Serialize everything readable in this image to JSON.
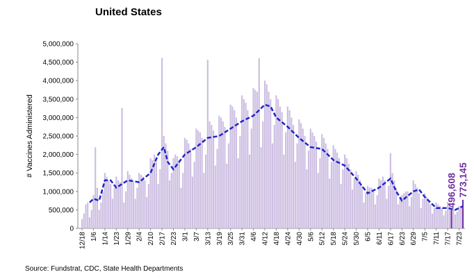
{
  "chart_data": {
    "type": "bar",
    "title": "United States",
    "y_label": "# Vaccines Administered",
    "source": "Source: Fundstrat, CDC, State Health Departments",
    "color": "#cdbfe2",
    "highlight_color": "#7030a0",
    "ylim": [
      0,
      5000000
    ],
    "yticks": [
      0,
      {
        "value": 500000,
        "label": "500,000"
      },
      {
        "value": 1000000,
        "label": "1,000,000"
      },
      {
        "value": 1500000,
        "label": "1,500,000"
      },
      {
        "value": 2000000,
        "label": "2,000,000"
      },
      {
        "value": 2500000,
        "label": "2,500,000"
      },
      {
        "value": 3000000,
        "label": "3,000,000"
      },
      {
        "value": 3500000,
        "label": "3,500,000"
      },
      {
        "value": 4000000,
        "label": "4,000,000"
      },
      {
        "value": 4500000,
        "label": "4,500,000"
      },
      {
        "value": 5000000,
        "label": "5,000,000"
      }
    ],
    "categories": [
      "12/18",
      null,
      null,
      null,
      null,
      null,
      "1/6",
      null,
      null,
      null,
      null,
      null,
      "1/14",
      null,
      null,
      null,
      null,
      null,
      "1/23",
      null,
      null,
      null,
      null,
      null,
      "1/29",
      null,
      null,
      null,
      null,
      null,
      "2/4",
      null,
      null,
      null,
      null,
      null,
      "2/10",
      null,
      null,
      null,
      null,
      null,
      "2/17",
      null,
      null,
      null,
      null,
      null,
      "2/23",
      null,
      null,
      null,
      null,
      null,
      "3/1",
      null,
      null,
      null,
      null,
      null,
      "3/7",
      null,
      null,
      null,
      null,
      null,
      "3/13",
      null,
      null,
      null,
      null,
      null,
      "3/19",
      null,
      null,
      null,
      null,
      null,
      "3/25",
      null,
      null,
      null,
      null,
      null,
      "3/31",
      null,
      null,
      null,
      null,
      null,
      "4/6",
      null,
      null,
      null,
      null,
      null,
      "4/12",
      null,
      null,
      null,
      null,
      null,
      "4/18",
      null,
      null,
      null,
      null,
      null,
      "4/24",
      null,
      null,
      null,
      null,
      null,
      "4/30",
      null,
      null,
      null,
      null,
      null,
      "5/6",
      null,
      null,
      null,
      null,
      null,
      "5/12",
      null,
      null,
      null,
      null,
      null,
      "5/18",
      null,
      null,
      null,
      null,
      null,
      "5/24",
      null,
      null,
      null,
      null,
      null,
      "5/30",
      null,
      null,
      null,
      null,
      null,
      "6/5",
      null,
      null,
      null,
      null,
      null,
      "6/11",
      null,
      null,
      null,
      null,
      null,
      "6/17",
      null,
      null,
      null,
      null,
      null,
      "6/23",
      null,
      null,
      null,
      null,
      null,
      "6/29",
      null,
      null,
      null,
      null,
      null,
      "7/5",
      null,
      null,
      null,
      null,
      null,
      "7/11",
      null,
      null,
      null,
      null,
      null,
      "7/17",
      null,
      null,
      null,
      null,
      null,
      "7/23",
      null,
      null
    ],
    "values": [
      250000,
      400000,
      650000,
      700000,
      300000,
      500000,
      900000,
      2195153,
      1100000,
      500000,
      700000,
      1000000,
      1500000,
      1400000,
      1300000,
      1200000,
      800000,
      1100000,
      1400000,
      1300000,
      1250000,
      3259678,
      700000,
      1000000,
      1550000,
      1450000,
      1350000,
      1250000,
      800000,
      1100000,
      1500000,
      1450000,
      1400000,
      1300000,
      850000,
      1200000,
      1900000,
      1850000,
      2000000,
      1800000,
      1200000,
      1600000,
      4617765,
      2500000,
      2300000,
      2100000,
      1300000,
      1500000,
      1900000,
      2000000,
      1950000,
      1850000,
      1100000,
      1500000,
      2450000,
      2400000,
      2300000,
      2150000,
      1400000,
      1800000,
      2700000,
      2650000,
      2600000,
      2450000,
      1500000,
      2000000,
      4565310,
      2900000,
      2800000,
      2650000,
      1700000,
      2150000,
      3050000,
      3000000,
      2900000,
      2750000,
      1750000,
      2300000,
      3350000,
      3300000,
      3200000,
      3000000,
      1900000,
      2500000,
      3600000,
      3500000,
      3400000,
      3200000,
      2000000,
      2700000,
      3800000,
      3750000,
      3700000,
      4611471,
      2200000,
      2900000,
      4000000,
      3900000,
      3700000,
      3500000,
      2300000,
      2800000,
      3600000,
      3500000,
      3300000,
      3150000,
      2000000,
      2600000,
      3300000,
      3200000,
      3000000,
      2800000,
      1800000,
      2300000,
      2950000,
      2850000,
      2700000,
      2500000,
      1600000,
      2100000,
      2700000,
      2600000,
      2500000,
      2350000,
      1500000,
      1900000,
      2550000,
      2450000,
      2300000,
      2150000,
      1350000,
      1800000,
      2250000,
      2150000,
      2050000,
      1900000,
      1200000,
      1600000,
      2000000,
      1900000,
      1750000,
      1600000,
      1050000,
      1350000,
      1550000,
      1450000,
      1300000,
      1150000,
      700000,
      950000,
      1150000,
      1100000,
      1100000,
      1050000,
      650000,
      900000,
      1350000,
      1300000,
      1400000,
      1300000,
      800000,
      1150000,
      2035823,
      1500000,
      1300000,
      1100000,
      650000,
      800000,
      900000,
      950000,
      1000000,
      1000000,
      600000,
      850000,
      1300000,
      1200000,
      1100000,
      950000,
      550000,
      800000,
      950000,
      850000,
      750000,
      650000,
      400000,
      550000,
      700000,
      650000,
      600000,
      550000,
      350000,
      480000,
      720000,
      680000,
      496608,
      560000,
      380000,
      450000,
      600000,
      550000,
      773145
    ],
    "value_labels": [
      null,
      null,
      null,
      null,
      null,
      null,
      null,
      null,
      null,
      null,
      null,
      null,
      null,
      null,
      null,
      null,
      null,
      null,
      null,
      null,
      null,
      null,
      null,
      null,
      null,
      null,
      null,
      null,
      null,
      null,
      null,
      null,
      null,
      null,
      null,
      null,
      null,
      null,
      null,
      null,
      null,
      null,
      null,
      null,
      null,
      null,
      null,
      null,
      null,
      null,
      null,
      null,
      null,
      null,
      null,
      null,
      null,
      null,
      null,
      null,
      null,
      null,
      null,
      null,
      null,
      null,
      null,
      null,
      null,
      null,
      null,
      null,
      null,
      null,
      null,
      null,
      null,
      null,
      null,
      null,
      null,
      null,
      null,
      null,
      null,
      null,
      null,
      null,
      null,
      null,
      null,
      null,
      null,
      null,
      null,
      null,
      null,
      null,
      null,
      null,
      null,
      null,
      null,
      null,
      null,
      null,
      null,
      null,
      null,
      null,
      null,
      null,
      null,
      null,
      null,
      null,
      null,
      null,
      null,
      null,
      null,
      null,
      null,
      null,
      null,
      null,
      null,
      null,
      null,
      null,
      null,
      null,
      null,
      null,
      null,
      null,
      null,
      null,
      null,
      null,
      null,
      null,
      null,
      null,
      null,
      null,
      null,
      null,
      null,
      null,
      null,
      null,
      null,
      null,
      null,
      null,
      null,
      null,
      null,
      null,
      null,
      null,
      null,
      null,
      null,
      null,
      null,
      null,
      null,
      null,
      null,
      null,
      null,
      null,
      null,
      null,
      null,
      null,
      null,
      null,
      null,
      null,
      null,
      null,
      null,
      null,
      null,
      null,
      null,
      null,
      null,
      null,
      null,
      null,
      "496,608",
      null,
      null,
      null,
      null,
      null,
      "773,145"
    ],
    "average": {
      "color": "#1f24c8",
      "dashed": true,
      "x": [
        4,
        6,
        9,
        12,
        15,
        18,
        24,
        30,
        36,
        40,
        43,
        45,
        48,
        54,
        60,
        66,
        72,
        78,
        84,
        90,
        96,
        99,
        102,
        108,
        114,
        120,
        126,
        132,
        138,
        144,
        150,
        156,
        162,
        165,
        168,
        174,
        177,
        180,
        186,
        192,
        196,
        200
      ],
      "values": [
        700000,
        800000,
        750000,
        1300000,
        1300000,
        1100000,
        1300000,
        1250000,
        1500000,
        2000000,
        2200000,
        1800000,
        1600000,
        2000000,
        2200000,
        2450000,
        2500000,
        2700000,
        2900000,
        3050000,
        3350000,
        3300000,
        3000000,
        2750000,
        2450000,
        2200000,
        2150000,
        1850000,
        1700000,
        1350000,
        950000,
        1100000,
        1350000,
        1000000,
        750000,
        1000000,
        1050000,
        850000,
        550000,
        550000,
        500000,
        600000
      ]
    }
  }
}
